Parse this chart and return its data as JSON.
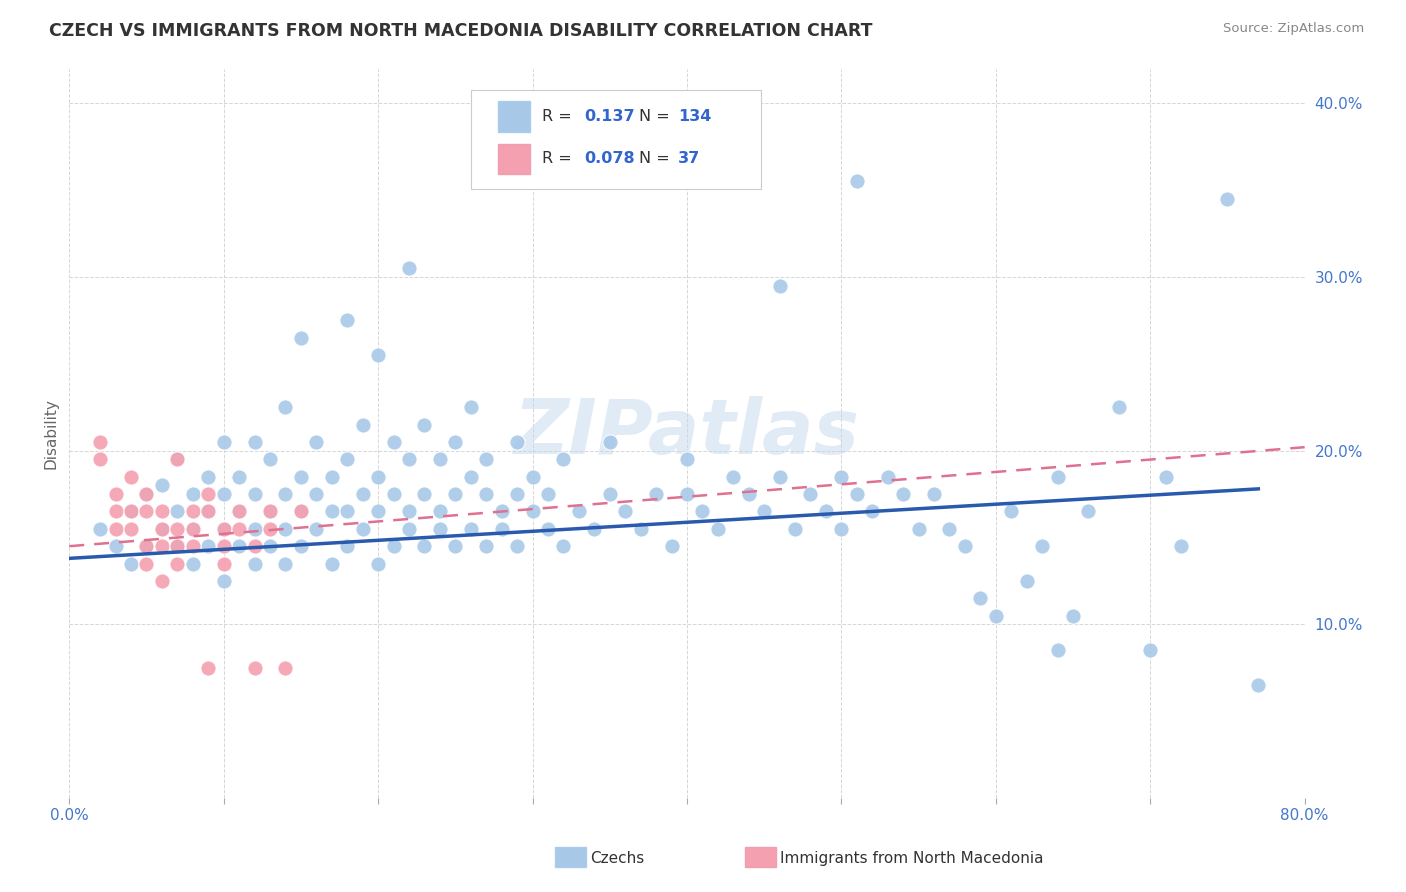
{
  "title": "CZECH VS IMMIGRANTS FROM NORTH MACEDONIA DISABILITY CORRELATION CHART",
  "source": "Source: ZipAtlas.com",
  "ylabel": "Disability",
  "watermark": "ZIPatlas",
  "xlim": [
    0.0,
    0.8
  ],
  "ylim": [
    0.0,
    0.42
  ],
  "xticks": [
    0.0,
    0.1,
    0.2,
    0.3,
    0.4,
    0.5,
    0.6,
    0.7,
    0.8
  ],
  "yticks": [
    0.0,
    0.1,
    0.2,
    0.3,
    0.4
  ],
  "blue_color": "#a8c8e8",
  "pink_color": "#f4a0b0",
  "blue_line_color": "#2a5aad",
  "pink_line_color": "#e07090",
  "axis_label_color": "#4477cc",
  "grid_color": "#cccccc",
  "title_color": "#333333",
  "czechs_label": "Czechs",
  "immig_label": "Immigrants from North Macedonia",
  "blue_scatter": [
    [
      0.02,
      0.155
    ],
    [
      0.03,
      0.145
    ],
    [
      0.04,
      0.135
    ],
    [
      0.04,
      0.165
    ],
    [
      0.05,
      0.145
    ],
    [
      0.05,
      0.175
    ],
    [
      0.06,
      0.155
    ],
    [
      0.06,
      0.18
    ],
    [
      0.07,
      0.145
    ],
    [
      0.07,
      0.165
    ],
    [
      0.07,
      0.195
    ],
    [
      0.08,
      0.135
    ],
    [
      0.08,
      0.155
    ],
    [
      0.08,
      0.175
    ],
    [
      0.09,
      0.145
    ],
    [
      0.09,
      0.165
    ],
    [
      0.09,
      0.185
    ],
    [
      0.1,
      0.125
    ],
    [
      0.1,
      0.155
    ],
    [
      0.1,
      0.175
    ],
    [
      0.1,
      0.205
    ],
    [
      0.11,
      0.145
    ],
    [
      0.11,
      0.165
    ],
    [
      0.11,
      0.185
    ],
    [
      0.12,
      0.135
    ],
    [
      0.12,
      0.155
    ],
    [
      0.12,
      0.175
    ],
    [
      0.12,
      0.205
    ],
    [
      0.13,
      0.145
    ],
    [
      0.13,
      0.165
    ],
    [
      0.13,
      0.195
    ],
    [
      0.14,
      0.135
    ],
    [
      0.14,
      0.155
    ],
    [
      0.14,
      0.175
    ],
    [
      0.14,
      0.225
    ],
    [
      0.15,
      0.145
    ],
    [
      0.15,
      0.165
    ],
    [
      0.15,
      0.185
    ],
    [
      0.15,
      0.265
    ],
    [
      0.16,
      0.155
    ],
    [
      0.16,
      0.175
    ],
    [
      0.16,
      0.205
    ],
    [
      0.17,
      0.135
    ],
    [
      0.17,
      0.165
    ],
    [
      0.17,
      0.185
    ],
    [
      0.18,
      0.145
    ],
    [
      0.18,
      0.165
    ],
    [
      0.18,
      0.195
    ],
    [
      0.18,
      0.275
    ],
    [
      0.19,
      0.155
    ],
    [
      0.19,
      0.175
    ],
    [
      0.19,
      0.215
    ],
    [
      0.2,
      0.135
    ],
    [
      0.2,
      0.165
    ],
    [
      0.2,
      0.185
    ],
    [
      0.2,
      0.255
    ],
    [
      0.21,
      0.145
    ],
    [
      0.21,
      0.175
    ],
    [
      0.21,
      0.205
    ],
    [
      0.22,
      0.155
    ],
    [
      0.22,
      0.165
    ],
    [
      0.22,
      0.195
    ],
    [
      0.22,
      0.305
    ],
    [
      0.23,
      0.145
    ],
    [
      0.23,
      0.175
    ],
    [
      0.23,
      0.215
    ],
    [
      0.24,
      0.155
    ],
    [
      0.24,
      0.165
    ],
    [
      0.24,
      0.195
    ],
    [
      0.25,
      0.145
    ],
    [
      0.25,
      0.175
    ],
    [
      0.25,
      0.205
    ],
    [
      0.26,
      0.155
    ],
    [
      0.26,
      0.185
    ],
    [
      0.26,
      0.225
    ],
    [
      0.27,
      0.145
    ],
    [
      0.27,
      0.175
    ],
    [
      0.27,
      0.195
    ],
    [
      0.28,
      0.155
    ],
    [
      0.28,
      0.165
    ],
    [
      0.29,
      0.145
    ],
    [
      0.29,
      0.175
    ],
    [
      0.29,
      0.205
    ],
    [
      0.3,
      0.165
    ],
    [
      0.3,
      0.185
    ],
    [
      0.31,
      0.155
    ],
    [
      0.31,
      0.175
    ],
    [
      0.32,
      0.145
    ],
    [
      0.32,
      0.195
    ],
    [
      0.33,
      0.165
    ],
    [
      0.34,
      0.155
    ],
    [
      0.35,
      0.175
    ],
    [
      0.35,
      0.205
    ],
    [
      0.36,
      0.165
    ],
    [
      0.37,
      0.155
    ],
    [
      0.38,
      0.175
    ],
    [
      0.39,
      0.145
    ],
    [
      0.4,
      0.175
    ],
    [
      0.4,
      0.195
    ],
    [
      0.41,
      0.165
    ],
    [
      0.42,
      0.155
    ],
    [
      0.43,
      0.185
    ],
    [
      0.44,
      0.175
    ],
    [
      0.45,
      0.165
    ],
    [
      0.46,
      0.185
    ],
    [
      0.46,
      0.295
    ],
    [
      0.47,
      0.155
    ],
    [
      0.48,
      0.175
    ],
    [
      0.49,
      0.165
    ],
    [
      0.5,
      0.155
    ],
    [
      0.5,
      0.185
    ],
    [
      0.51,
      0.175
    ],
    [
      0.51,
      0.355
    ],
    [
      0.52,
      0.165
    ],
    [
      0.53,
      0.185
    ],
    [
      0.54,
      0.175
    ],
    [
      0.55,
      0.155
    ],
    [
      0.56,
      0.175
    ],
    [
      0.57,
      0.155
    ],
    [
      0.58,
      0.145
    ],
    [
      0.59,
      0.115
    ],
    [
      0.6,
      0.105
    ],
    [
      0.61,
      0.165
    ],
    [
      0.62,
      0.125
    ],
    [
      0.63,
      0.145
    ],
    [
      0.64,
      0.085
    ],
    [
      0.64,
      0.185
    ],
    [
      0.65,
      0.105
    ],
    [
      0.66,
      0.165
    ],
    [
      0.68,
      0.225
    ],
    [
      0.7,
      0.085
    ],
    [
      0.71,
      0.185
    ],
    [
      0.72,
      0.145
    ],
    [
      0.75,
      0.345
    ],
    [
      0.77,
      0.065
    ]
  ],
  "pink_scatter": [
    [
      0.02,
      0.205
    ],
    [
      0.02,
      0.195
    ],
    [
      0.03,
      0.175
    ],
    [
      0.03,
      0.165
    ],
    [
      0.03,
      0.155
    ],
    [
      0.04,
      0.185
    ],
    [
      0.04,
      0.165
    ],
    [
      0.04,
      0.155
    ],
    [
      0.05,
      0.175
    ],
    [
      0.05,
      0.165
    ],
    [
      0.05,
      0.145
    ],
    [
      0.05,
      0.135
    ],
    [
      0.06,
      0.165
    ],
    [
      0.06,
      0.155
    ],
    [
      0.06,
      0.145
    ],
    [
      0.06,
      0.125
    ],
    [
      0.07,
      0.155
    ],
    [
      0.07,
      0.145
    ],
    [
      0.07,
      0.135
    ],
    [
      0.07,
      0.195
    ],
    [
      0.08,
      0.165
    ],
    [
      0.08,
      0.155
    ],
    [
      0.08,
      0.145
    ],
    [
      0.09,
      0.175
    ],
    [
      0.09,
      0.165
    ],
    [
      0.09,
      0.075
    ],
    [
      0.1,
      0.155
    ],
    [
      0.1,
      0.145
    ],
    [
      0.1,
      0.135
    ],
    [
      0.11,
      0.165
    ],
    [
      0.11,
      0.155
    ],
    [
      0.12,
      0.145
    ],
    [
      0.12,
      0.075
    ],
    [
      0.13,
      0.165
    ],
    [
      0.13,
      0.155
    ],
    [
      0.14,
      0.075
    ],
    [
      0.15,
      0.165
    ]
  ],
  "blue_fit_x": [
    0.0,
    0.77
  ],
  "blue_fit_y": [
    0.138,
    0.178
  ],
  "pink_fit_x": [
    0.0,
    0.8
  ],
  "pink_fit_y": [
    0.145,
    0.202
  ]
}
